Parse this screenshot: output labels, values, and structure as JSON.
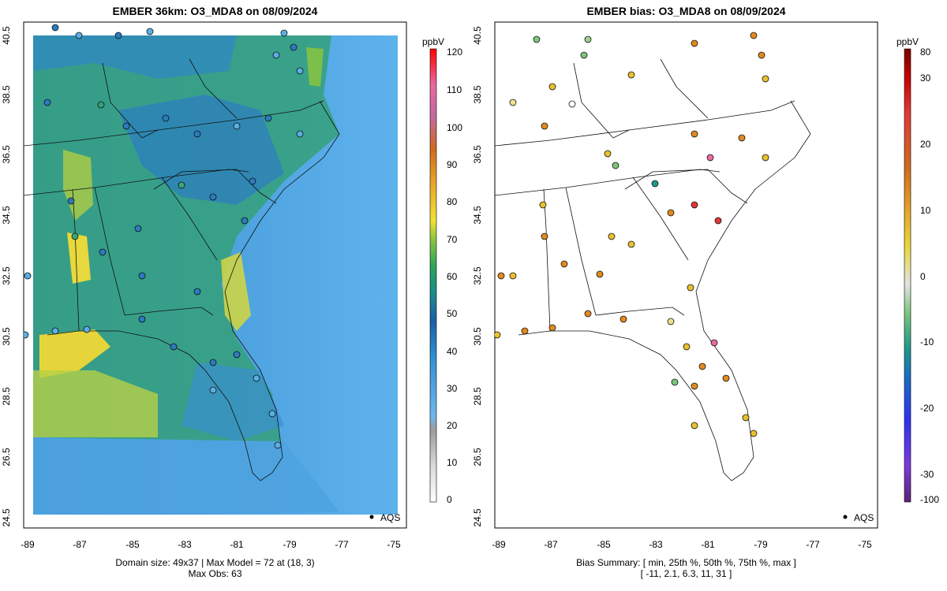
{
  "left_panel": {
    "title": "EMBER 36km: O3_MDA8 on 08/09/2024",
    "footer_line1": "Domain size: 49x37 | Max Model = 72 at (18, 3)",
    "footer_line2": "Max Obs: 63",
    "legend_label": "AQS",
    "colorbar": {
      "unit": "ppbV",
      "ticks": [
        "0",
        "10",
        "20",
        "30",
        "40",
        "50",
        "60",
        "70",
        "80",
        "90",
        "100",
        "110",
        "120"
      ]
    }
  },
  "right_panel": {
    "title": "EMBER bias: O3_MDA8 on 08/09/2024",
    "footer_line1": "Bias Summary: [ min, 25th %, 50th %, 75th %, max ]",
    "footer_line2": "[ -11,   2.1,   6.3,   11,   31 ]",
    "legend_label": "AQS",
    "colorbar": {
      "unit": "ppbV",
      "ticks": [
        "-100",
        "-30",
        "-20",
        "-10",
        "0",
        "10",
        "20",
        "30",
        "80"
      ]
    }
  },
  "axes": {
    "x_ticks": [
      "-89",
      "-87",
      "-85",
      "-83",
      "-81",
      "-79",
      "-77",
      "-75"
    ],
    "y_ticks": [
      "24.5",
      "26.5",
      "28.5",
      "30.5",
      "32.5",
      "34.5",
      "36.5",
      "38.5",
      "40.5"
    ]
  },
  "colors": {
    "obs_low": "#5aaee6",
    "obs_mid": "#2b7bbf",
    "bias_pos_low": "#e8c12e",
    "bias_pos_high": "#e08a1f",
    "bias_neg": "#7cc67a"
  }
}
